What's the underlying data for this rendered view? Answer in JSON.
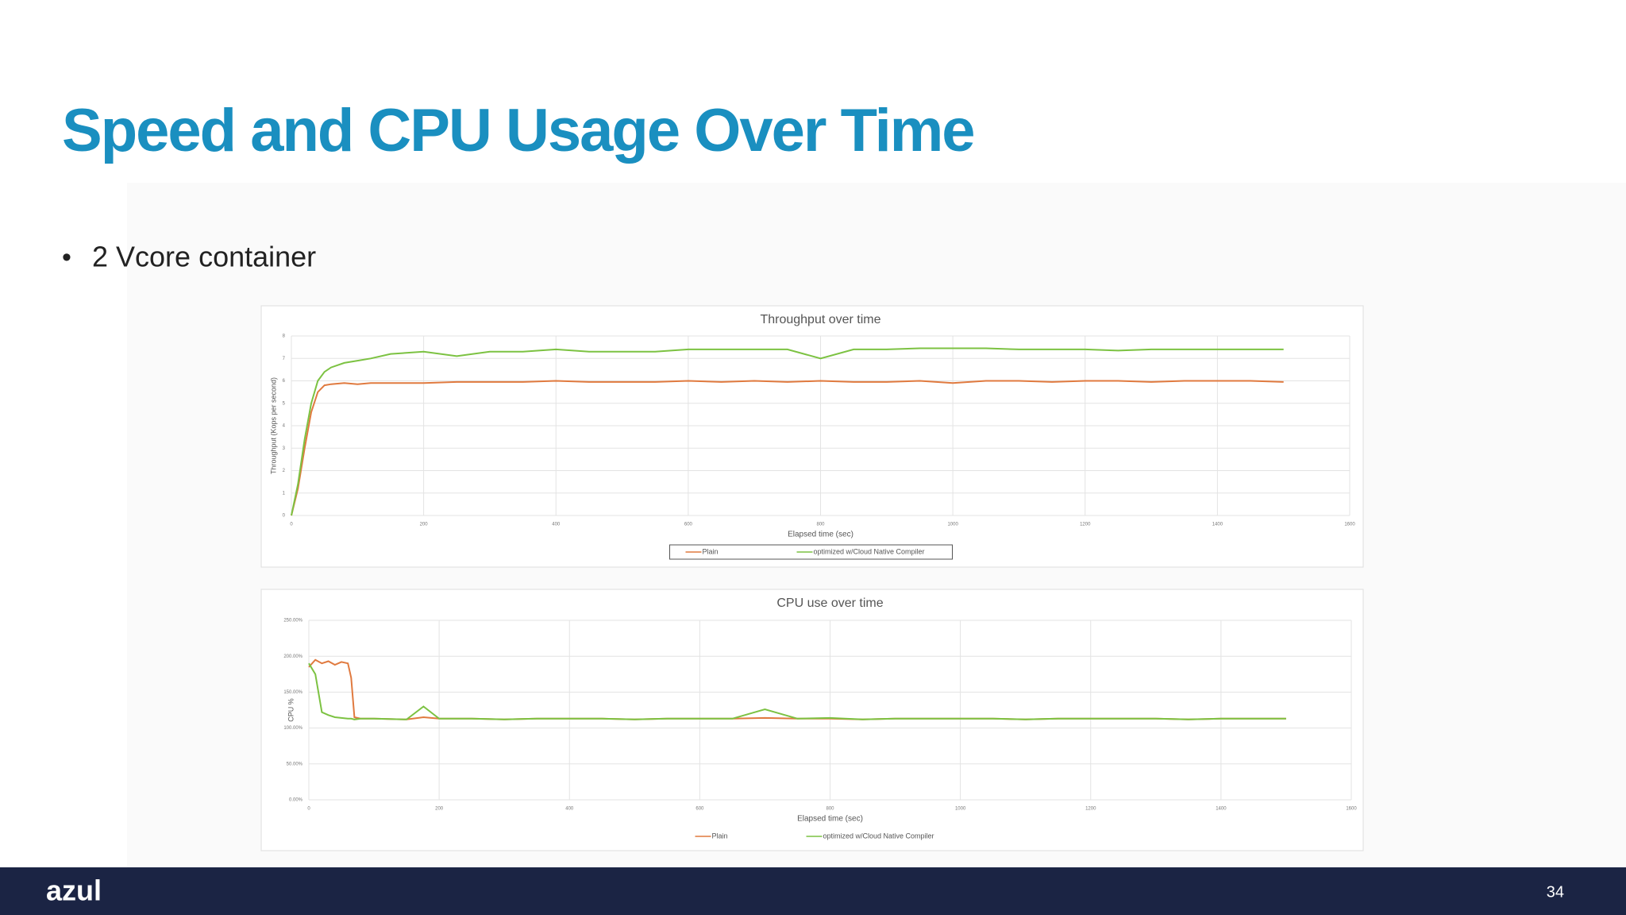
{
  "slide": {
    "title": "Speed and CPU Usage Over Time",
    "bullets": [
      "2 Vcore container"
    ],
    "logo": "azul",
    "page_number": "34"
  },
  "chart_data": [
    {
      "type": "line",
      "title": "Throughput over time",
      "x_label": "Elapsed time (sec)",
      "y_label": "Throughput (Kops per second)",
      "x": [
        0,
        10,
        20,
        30,
        40,
        50,
        60,
        80,
        100,
        120,
        150,
        200,
        250,
        300,
        350,
        400,
        450,
        500,
        550,
        600,
        650,
        700,
        750,
        800,
        850,
        900,
        950,
        1000,
        1050,
        1100,
        1150,
        1200,
        1250,
        1300,
        1350,
        1400,
        1450,
        1500
      ],
      "series": [
        {
          "name": "Plain",
          "color": "#e07a3f",
          "values": [
            0,
            1.2,
            3.0,
            4.6,
            5.5,
            5.8,
            5.85,
            5.9,
            5.85,
            5.9,
            5.9,
            5.9,
            5.95,
            5.95,
            5.95,
            6.0,
            5.95,
            5.95,
            5.95,
            6.0,
            5.95,
            6.0,
            5.95,
            6.0,
            5.95,
            5.95,
            6.0,
            5.9,
            6.0,
            6.0,
            5.95,
            6.0,
            6.0,
            5.95,
            6.0,
            6.0,
            6.0,
            5.95
          ]
        },
        {
          "name": "optimized w/Cloud Native Compiler",
          "color": "#7cc242",
          "values": [
            0,
            1.4,
            3.4,
            5.0,
            6.0,
            6.4,
            6.6,
            6.8,
            6.9,
            7.0,
            7.2,
            7.3,
            7.1,
            7.3,
            7.3,
            7.4,
            7.3,
            7.3,
            7.3,
            7.4,
            7.4,
            7.4,
            7.4,
            7.0,
            7.4,
            7.4,
            7.45,
            7.45,
            7.45,
            7.4,
            7.4,
            7.4,
            7.35,
            7.4,
            7.4,
            7.4,
            7.4,
            7.4
          ]
        }
      ],
      "xlim": [
        0,
        1600
      ],
      "xticks": [
        0,
        200,
        400,
        600,
        800,
        1000,
        1200,
        1400,
        1600
      ],
      "ylim": [
        0,
        8
      ],
      "yticks": [
        0,
        1,
        2,
        3,
        4,
        5,
        6,
        7,
        8
      ],
      "grid": true,
      "legend": "bottom",
      "legend_box": true
    },
    {
      "type": "line",
      "title": "CPU use over time",
      "x_label": "Elapsed time (sec)",
      "y_label": "CPU %",
      "x": [
        0,
        10,
        20,
        30,
        40,
        50,
        60,
        65,
        70,
        80,
        100,
        150,
        176,
        200,
        250,
        300,
        350,
        400,
        450,
        500,
        550,
        600,
        650,
        700,
        750,
        800,
        850,
        900,
        950,
        1000,
        1050,
        1100,
        1150,
        1200,
        1250,
        1300,
        1350,
        1400,
        1450,
        1500
      ],
      "series": [
        {
          "name": "Plain",
          "color": "#e07a3f",
          "values": [
            185,
            195,
            190,
            193,
            188,
            192,
            190,
            170,
            115,
            113,
            113,
            112,
            115,
            113,
            113,
            112,
            113,
            113,
            113,
            112,
            113,
            113,
            113,
            114,
            113,
            113,
            112,
            113,
            113,
            113,
            113,
            112,
            113,
            113,
            113,
            113,
            112,
            113,
            113,
            113
          ]
        },
        {
          "name": "optimized w/Cloud Native Compiler",
          "color": "#7cc242",
          "values": [
            190,
            175,
            122,
            118,
            115,
            114,
            113,
            113,
            112,
            113,
            113,
            112,
            130,
            113,
            113,
            112,
            113,
            113,
            113,
            112,
            113,
            113,
            113,
            126,
            113,
            114,
            112,
            113,
            113,
            113,
            113,
            112,
            113,
            113,
            113,
            113,
            112,
            113,
            113,
            113
          ]
        }
      ],
      "xlim": [
        0,
        1600
      ],
      "xticks": [
        0,
        200,
        400,
        600,
        800,
        1000,
        1200,
        1400,
        1600
      ],
      "ylim": [
        0,
        250
      ],
      "yticks": [
        {
          "value": 0,
          "label": "0.00%"
        },
        {
          "value": 50,
          "label": "50.00%"
        },
        {
          "value": 100,
          "label": "100.00%"
        },
        {
          "value": 150,
          "label": "150.00%"
        },
        {
          "value": 200,
          "label": "200.00%"
        },
        {
          "value": 250,
          "label": "250.00%"
        }
      ],
      "grid": true,
      "legend": "bottom",
      "legend_box": false
    }
  ]
}
